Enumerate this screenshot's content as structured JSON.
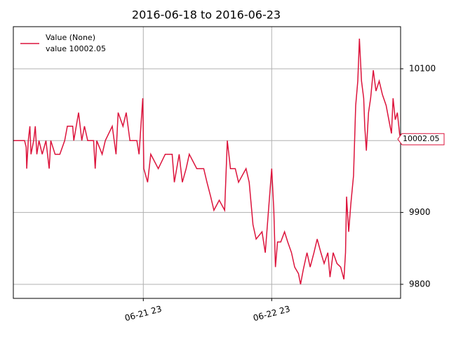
{
  "chart_data": {
    "type": "line",
    "title": "2016-06-18 to 2016-06-23",
    "legend_note": "value 10002.05",
    "last_value": 10002.05,
    "legend": "upper left",
    "grid": true,
    "xlim": [
      -1.3,
      71.1
    ],
    "ylim": [
      9780.4,
      10158.6
    ],
    "xticks": [
      {
        "value": 23,
        "label": "06-21 23"
      },
      {
        "value": 47,
        "label": "06-22 23"
      }
    ],
    "yticks": [
      9800,
      9900,
      10000,
      10100
    ],
    "x": [
      -1.3,
      0.8,
      1.1,
      1.2,
      1.5,
      1.8,
      2.0,
      2.5,
      2.8,
      3.1,
      3.5,
      4.1,
      4.8,
      5.4,
      5.7,
      6.5,
      7.4,
      8.3,
      8.8,
      9.8,
      10.0,
      10.9,
      11.5,
      12.0,
      12.6,
      13.7,
      14.0,
      14.3,
      15.3,
      15.9,
      17.2,
      17.9,
      18.3,
      19.2,
      19.8,
      20.5,
      21.8,
      22.2,
      22.9,
      23.1,
      23.8,
      24.4,
      25.8,
      27.1,
      28.4,
      28.8,
      29.7,
      30.3,
      31.0,
      31.6,
      33.0,
      34.3,
      34.9,
      35.6,
      36.2,
      37.2,
      38.2,
      38.7,
      39.3,
      40.2,
      40.8,
      42.2,
      42.8,
      43.5,
      44.1,
      45.2,
      45.8,
      46.7,
      47.0,
      47.4,
      47.7,
      48.1,
      48.7,
      49.4,
      50.0,
      50.7,
      51.3,
      52.0,
      52.4,
      52.9,
      53.6,
      54.2,
      54.9,
      55.5,
      56.2,
      56.8,
      57.5,
      57.9,
      58.5,
      59.2,
      59.9,
      60.5,
      60.8,
      61.0,
      61.4,
      61.8,
      62.3,
      62.7,
      63.1,
      63.4,
      63.8,
      64.2,
      64.4,
      64.7,
      65.1,
      65.5,
      66.0,
      66.5,
      67.1,
      67.7,
      68.4,
      69.0,
      69.4,
      69.7,
      70.1,
      70.5,
      70.9,
      71.1
    ],
    "series": [
      {
        "name": "Value (None)",
        "color": "#dc143c",
        "values": [
          10000,
          10000,
          9991,
          9961,
          10000,
          10020,
          9981,
          10000,
          10020,
          9981,
          10000,
          9981,
          10000,
          9961,
          10000,
          9981,
          9981,
          10000,
          10020,
          10020,
          10000,
          10039,
          10000,
          10020,
          10000,
          10000,
          9961,
          10000,
          9981,
          10000,
          10020,
          9981,
          10039,
          10020,
          10039,
          10000,
          10000,
          9981,
          10059,
          9961,
          9942,
          9981,
          9961,
          9981,
          9981,
          9942,
          9981,
          9942,
          9961,
          9981,
          9961,
          9961,
          9942,
          9922,
          9903,
          9917,
          9903,
          10000,
          9961,
          9961,
          9942,
          9961,
          9942,
          9883,
          9863,
          9873,
          9844,
          9932,
          9961,
          9903,
          9824,
          9859,
          9859,
          9873,
          9859,
          9844,
          9824,
          9815,
          9800,
          9820,
          9844,
          9824,
          9844,
          9863,
          9844,
          9829,
          9844,
          9810,
          9844,
          9829,
          9824,
          9807,
          9844,
          9922,
          9873,
          9912,
          9951,
          10049,
          10083,
          10142,
          10083,
          10059,
          10020,
          9986,
          10039,
          10059,
          10098,
          10069,
          10083,
          10064,
          10049,
          10025,
          10010,
          10059,
          10029,
          10039,
          10010,
          10002
        ]
      }
    ]
  }
}
